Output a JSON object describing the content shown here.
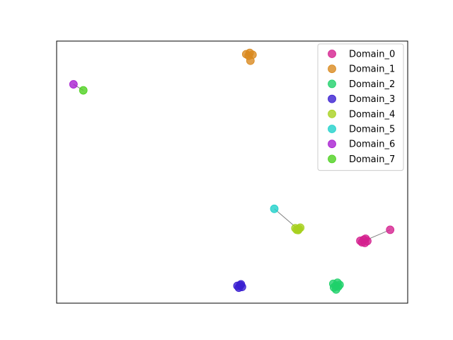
{
  "chart_data": {
    "type": "scatter",
    "title": "",
    "xlabel": "",
    "ylabel": "",
    "grid": false,
    "axis_ticks": false,
    "legend": "top-right",
    "xlim": [
      0,
      100
    ],
    "ylim": [
      0,
      100
    ],
    "series": [
      {
        "name": "Domain_0",
        "color": "#d4218f",
        "points": [
          [
            95,
            28
          ],
          [
            86.5,
            23.8
          ],
          [
            87.5,
            24.2
          ],
          [
            88.5,
            23.7
          ],
          [
            87,
            23.2
          ],
          [
            88,
            24.6
          ],
          [
            87.8,
            23
          ]
        ],
        "links": [
          [
            [
              95,
              28
            ],
            [
              88,
              24
            ]
          ]
        ]
      },
      {
        "name": "Domain_1",
        "color": "#d98a1f",
        "points": [
          [
            54,
            95
          ],
          [
            55,
            95.5
          ],
          [
            55.8,
            94.8
          ],
          [
            55.2,
            92.5
          ],
          [
            54.7,
            94.4
          ]
        ],
        "links": []
      },
      {
        "name": "Domain_2",
        "color": "#1fd16a",
        "points": [
          [
            78.8,
            7.4
          ],
          [
            80,
            7.8
          ],
          [
            79.5,
            6.6
          ],
          [
            80.6,
            7.0
          ],
          [
            79,
            6.0
          ],
          [
            80.2,
            6.3
          ],
          [
            79.6,
            5.2
          ]
        ],
        "links": []
      },
      {
        "name": "Domain_3",
        "color": "#3a1fd1",
        "points": [
          [
            51.5,
            6.6
          ],
          [
            52.5,
            7.2
          ],
          [
            52.8,
            6.2
          ],
          [
            51.9,
            5.9
          ],
          [
            52.3,
            6.8
          ]
        ],
        "links": []
      },
      {
        "name": "Domain_4",
        "color": "#a7d11f",
        "points": [
          [
            68,
            28.6
          ],
          [
            68.8,
            27.9
          ],
          [
            69.4,
            28.8
          ],
          [
            68.4,
            28.0
          ],
          [
            69.0,
            28.3
          ]
        ],
        "links": []
      },
      {
        "name": "Domain_5",
        "color": "#1fd1cb",
        "points": [
          [
            62,
            36
          ]
        ],
        "links": [
          [
            [
              62,
              36
            ],
            [
              68.7,
              28.3
            ]
          ]
        ]
      },
      {
        "name": "Domain_6",
        "color": "#a81fd1",
        "points": [
          [
            4.8,
            83.5
          ]
        ],
        "links": [
          [
            [
              4.8,
              83.5
            ],
            [
              7.6,
              81.2
            ]
          ]
        ]
      },
      {
        "name": "Domain_7",
        "color": "#4ed11f",
        "points": [
          [
            7.6,
            81.2
          ]
        ],
        "links": []
      }
    ]
  }
}
